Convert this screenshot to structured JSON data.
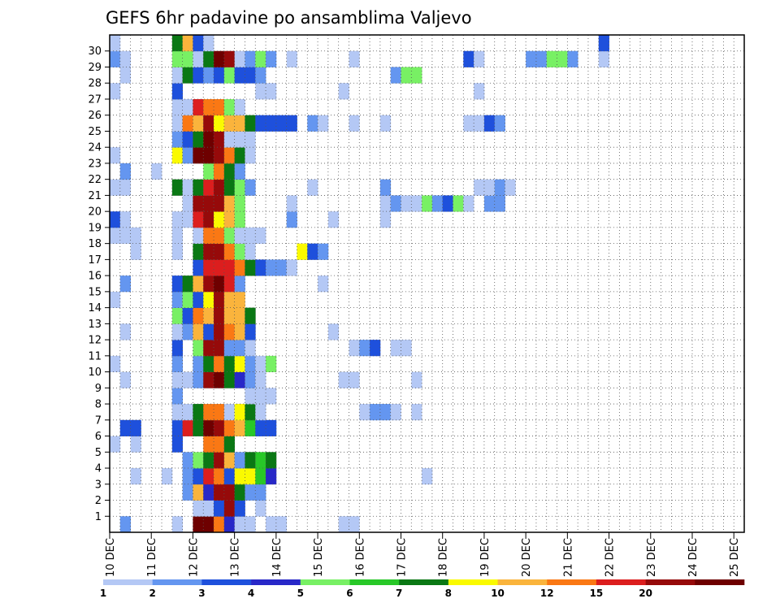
{
  "chart_data": {
    "type": "heatmap",
    "title": "GEFS 6hr padavine po ansamblima Valjevo",
    "xlabel": "",
    "ylabel": "",
    "x_tick_labels": [
      "10 DEC",
      "11 DEC",
      "12 DEC",
      "13 DEC",
      "14 DEC",
      "15 DEC",
      "16 DEC",
      "17 DEC",
      "18 DEC",
      "19 DEC",
      "20 DEC",
      "21 DEC",
      "22 DEC",
      "23 DEC",
      "24 DEC",
      "25 DEC"
    ],
    "y_tick_labels": [
      "1",
      "2",
      "3",
      "4",
      "5",
      "6",
      "7",
      "8",
      "9",
      "10",
      "11",
      "12",
      "13",
      "14",
      "15",
      "16",
      "17",
      "18",
      "19",
      "20",
      "21",
      "22",
      "23",
      "24",
      "25",
      "26",
      "27",
      "28",
      "29",
      "30"
    ],
    "grid": true,
    "x_steps": 61,
    "y_rows": 31,
    "colorbar": {
      "labels": [
        "1",
        "2",
        "3",
        "4",
        "5",
        "6",
        "7",
        "8",
        "10",
        "12",
        "15",
        "20"
      ],
      "colors": [
        "#b4c8f5",
        "#6496f0",
        "#1e50dc",
        "#2828c8",
        "#78f064",
        "#28c828",
        "#0a7814",
        "#fafa00",
        "#fab43c",
        "#fa7814",
        "#dc1e1e",
        "#960a0a",
        "#6e0000"
      ]
    },
    "levels_note": "cells store colour class index 0..12 (0 = 1-2 mm ... 12 = >20 mm)",
    "cells": [
      [
        0,
        1,
        1
      ],
      [
        0,
        6,
        0
      ],
      [
        0,
        8,
        12
      ],
      [
        0,
        9,
        12
      ],
      [
        0,
        10,
        9
      ],
      [
        0,
        11,
        3
      ],
      [
        0,
        12,
        0
      ],
      [
        0,
        13,
        0
      ],
      [
        0,
        15,
        0
      ],
      [
        0,
        16,
        0
      ],
      [
        0,
        22,
        0
      ],
      [
        0,
        23,
        0
      ],
      [
        1,
        8,
        0
      ],
      [
        1,
        9,
        0
      ],
      [
        1,
        10,
        2
      ],
      [
        1,
        11,
        11
      ],
      [
        1,
        12,
        2
      ],
      [
        1,
        14,
        0
      ],
      [
        2,
        7,
        1
      ],
      [
        2,
        8,
        8
      ],
      [
        2,
        9,
        3
      ],
      [
        2,
        10,
        11
      ],
      [
        2,
        11,
        11
      ],
      [
        2,
        12,
        6
      ],
      [
        2,
        13,
        1
      ],
      [
        2,
        14,
        1
      ],
      [
        3,
        2,
        0
      ],
      [
        3,
        5,
        0
      ],
      [
        3,
        7,
        1
      ],
      [
        3,
        8,
        2
      ],
      [
        3,
        9,
        10
      ],
      [
        3,
        10,
        9
      ],
      [
        3,
        11,
        2
      ],
      [
        3,
        12,
        7
      ],
      [
        3,
        13,
        7
      ],
      [
        3,
        14,
        5
      ],
      [
        3,
        15,
        3
      ],
      [
        3,
        30,
        0
      ],
      [
        4,
        7,
        1
      ],
      [
        4,
        8,
        4
      ],
      [
        4,
        9,
        6
      ],
      [
        4,
        10,
        11
      ],
      [
        4,
        11,
        8
      ],
      [
        4,
        12,
        1
      ],
      [
        4,
        13,
        6
      ],
      [
        4,
        14,
        5
      ],
      [
        4,
        15,
        6
      ],
      [
        5,
        0,
        0
      ],
      [
        5,
        2,
        0
      ],
      [
        5,
        6,
        2
      ],
      [
        5,
        9,
        9
      ],
      [
        5,
        10,
        9
      ],
      [
        5,
        11,
        6
      ],
      [
        6,
        1,
        2
      ],
      [
        6,
        2,
        2
      ],
      [
        6,
        6,
        2
      ],
      [
        6,
        7,
        10
      ],
      [
        6,
        8,
        6
      ],
      [
        6,
        9,
        12
      ],
      [
        6,
        10,
        11
      ],
      [
        6,
        11,
        9
      ],
      [
        6,
        12,
        8
      ],
      [
        6,
        13,
        5
      ],
      [
        6,
        14,
        2
      ],
      [
        6,
        15,
        2
      ],
      [
        7,
        6,
        0
      ],
      [
        7,
        7,
        0
      ],
      [
        7,
        8,
        6
      ],
      [
        7,
        9,
        9
      ],
      [
        7,
        10,
        9
      ],
      [
        7,
        11,
        0
      ],
      [
        7,
        12,
        7
      ],
      [
        7,
        13,
        6
      ],
      [
        7,
        14,
        0
      ],
      [
        7,
        24,
        0
      ],
      [
        7,
        25,
        1
      ],
      [
        7,
        26,
        1
      ],
      [
        7,
        27,
        0
      ],
      [
        7,
        29,
        0
      ],
      [
        8,
        6,
        1
      ],
      [
        8,
        13,
        0
      ],
      [
        8,
        14,
        0
      ],
      [
        8,
        15,
        0
      ],
      [
        9,
        1,
        0
      ],
      [
        9,
        6,
        0
      ],
      [
        9,
        7,
        0
      ],
      [
        9,
        8,
        1
      ],
      [
        9,
        9,
        11
      ],
      [
        9,
        10,
        12
      ],
      [
        9,
        11,
        6
      ],
      [
        9,
        12,
        3
      ],
      [
        9,
        13,
        1
      ],
      [
        9,
        14,
        0
      ],
      [
        9,
        22,
        0
      ],
      [
        9,
        23,
        0
      ],
      [
        9,
        29,
        0
      ],
      [
        10,
        0,
        0
      ],
      [
        10,
        6,
        1
      ],
      [
        10,
        8,
        1
      ],
      [
        10,
        9,
        6
      ],
      [
        10,
        10,
        9
      ],
      [
        10,
        11,
        6
      ],
      [
        10,
        12,
        7
      ],
      [
        10,
        13,
        1
      ],
      [
        10,
        14,
        0
      ],
      [
        10,
        15,
        4
      ],
      [
        11,
        6,
        2
      ],
      [
        11,
        8,
        4
      ],
      [
        11,
        9,
        11
      ],
      [
        11,
        10,
        11
      ],
      [
        11,
        11,
        1
      ],
      [
        11,
        12,
        1
      ],
      [
        11,
        13,
        0
      ],
      [
        11,
        23,
        0
      ],
      [
        11,
        24,
        1
      ],
      [
        11,
        25,
        2
      ],
      [
        11,
        27,
        0
      ],
      [
        11,
        28,
        0
      ],
      [
        12,
        1,
        0
      ],
      [
        12,
        6,
        0
      ],
      [
        12,
        7,
        1
      ],
      [
        12,
        8,
        8
      ],
      [
        12,
        9,
        2
      ],
      [
        12,
        10,
        11
      ],
      [
        12,
        11,
        9
      ],
      [
        12,
        12,
        8
      ],
      [
        12,
        13,
        2
      ],
      [
        12,
        21,
        0
      ],
      [
        13,
        6,
        4
      ],
      [
        13,
        7,
        2
      ],
      [
        13,
        8,
        9
      ],
      [
        13,
        9,
        8
      ],
      [
        13,
        10,
        11
      ],
      [
        13,
        11,
        8
      ],
      [
        13,
        12,
        8
      ],
      [
        13,
        13,
        6
      ],
      [
        14,
        0,
        0
      ],
      [
        14,
        6,
        1
      ],
      [
        14,
        7,
        4
      ],
      [
        14,
        8,
        2
      ],
      [
        14,
        9,
        7
      ],
      [
        14,
        10,
        11
      ],
      [
        14,
        11,
        8
      ],
      [
        14,
        12,
        8
      ],
      [
        15,
        1,
        1
      ],
      [
        15,
        6,
        2
      ],
      [
        15,
        7,
        6
      ],
      [
        15,
        8,
        8
      ],
      [
        15,
        9,
        11
      ],
      [
        15,
        10,
        12
      ],
      [
        15,
        11,
        10
      ],
      [
        15,
        12,
        1
      ],
      [
        15,
        20,
        0
      ],
      [
        16,
        8,
        2
      ],
      [
        16,
        9,
        10
      ],
      [
        16,
        10,
        10
      ],
      [
        16,
        11,
        10
      ],
      [
        16,
        12,
        9
      ],
      [
        16,
        13,
        6
      ],
      [
        16,
        14,
        2
      ],
      [
        16,
        15,
        1
      ],
      [
        16,
        16,
        1
      ],
      [
        16,
        17,
        0
      ],
      [
        17,
        2,
        0
      ],
      [
        17,
        6,
        0
      ],
      [
        17,
        8,
        6
      ],
      [
        17,
        9,
        11
      ],
      [
        17,
        10,
        11
      ],
      [
        17,
        11,
        9
      ],
      [
        17,
        12,
        4
      ],
      [
        17,
        13,
        0
      ],
      [
        17,
        18,
        7
      ],
      [
        17,
        19,
        2
      ],
      [
        17,
        20,
        1
      ],
      [
        18,
        0,
        0
      ],
      [
        18,
        1,
        0
      ],
      [
        18,
        2,
        0
      ],
      [
        18,
        6,
        0
      ],
      [
        18,
        8,
        0
      ],
      [
        18,
        9,
        9
      ],
      [
        18,
        10,
        9
      ],
      [
        18,
        11,
        4
      ],
      [
        18,
        12,
        0
      ],
      [
        18,
        13,
        0
      ],
      [
        18,
        14,
        0
      ],
      [
        19,
        0,
        2
      ],
      [
        19,
        1,
        0
      ],
      [
        19,
        6,
        0
      ],
      [
        19,
        7,
        0
      ],
      [
        19,
        8,
        10
      ],
      [
        19,
        9,
        11
      ],
      [
        19,
        10,
        7
      ],
      [
        19,
        11,
        8
      ],
      [
        19,
        12,
        4
      ],
      [
        19,
        17,
        1
      ],
      [
        19,
        21,
        0
      ],
      [
        19,
        26,
        0
      ],
      [
        20,
        7,
        0
      ],
      [
        20,
        8,
        11
      ],
      [
        20,
        9,
        11
      ],
      [
        20,
        10,
        11
      ],
      [
        20,
        11,
        8
      ],
      [
        20,
        12,
        4
      ],
      [
        20,
        17,
        0
      ],
      [
        20,
        26,
        0
      ],
      [
        20,
        27,
        1
      ],
      [
        20,
        28,
        0
      ],
      [
        20,
        29,
        0
      ],
      [
        20,
        30,
        4
      ],
      [
        20,
        31,
        1
      ],
      [
        20,
        32,
        2
      ],
      [
        20,
        33,
        4
      ],
      [
        20,
        34,
        0
      ],
      [
        20,
        36,
        1
      ],
      [
        20,
        37,
        1
      ],
      [
        21,
        0,
        0
      ],
      [
        21,
        1,
        0
      ],
      [
        21,
        6,
        6
      ],
      [
        21,
        7,
        0
      ],
      [
        21,
        8,
        6
      ],
      [
        21,
        9,
        10
      ],
      [
        21,
        10,
        11
      ],
      [
        21,
        11,
        6
      ],
      [
        21,
        12,
        4
      ],
      [
        21,
        13,
        1
      ],
      [
        21,
        19,
        0
      ],
      [
        21,
        26,
        1
      ],
      [
        21,
        35,
        0
      ],
      [
        21,
        36,
        0
      ],
      [
        21,
        37,
        1
      ],
      [
        21,
        38,
        0
      ],
      [
        22,
        1,
        1
      ],
      [
        22,
        4,
        0
      ],
      [
        22,
        9,
        4
      ],
      [
        22,
        10,
        9
      ],
      [
        22,
        11,
        6
      ],
      [
        22,
        12,
        1
      ],
      [
        23,
        0,
        0
      ],
      [
        23,
        6,
        7
      ],
      [
        23,
        7,
        1
      ],
      [
        23,
        8,
        12
      ],
      [
        23,
        9,
        12
      ],
      [
        23,
        10,
        11
      ],
      [
        23,
        11,
        9
      ],
      [
        23,
        12,
        6
      ],
      [
        23,
        13,
        0
      ],
      [
        24,
        6,
        1
      ],
      [
        24,
        7,
        2
      ],
      [
        24,
        8,
        6
      ],
      [
        24,
        9,
        12
      ],
      [
        24,
        10,
        11
      ],
      [
        24,
        11,
        0
      ],
      [
        24,
        12,
        0
      ],
      [
        24,
        13,
        0
      ],
      [
        25,
        6,
        0
      ],
      [
        25,
        7,
        9
      ],
      [
        25,
        8,
        8
      ],
      [
        25,
        9,
        11
      ],
      [
        25,
        10,
        7
      ],
      [
        25,
        11,
        8
      ],
      [
        25,
        12,
        8
      ],
      [
        25,
        13,
        6
      ],
      [
        25,
        14,
        2
      ],
      [
        25,
        15,
        2
      ],
      [
        25,
        16,
        2
      ],
      [
        25,
        17,
        2
      ],
      [
        25,
        19,
        1
      ],
      [
        25,
        20,
        0
      ],
      [
        25,
        23,
        0
      ],
      [
        25,
        26,
        0
      ],
      [
        25,
        34,
        0
      ],
      [
        25,
        35,
        0
      ],
      [
        25,
        36,
        2
      ],
      [
        25,
        37,
        1
      ],
      [
        26,
        6,
        0
      ],
      [
        26,
        7,
        0
      ],
      [
        26,
        8,
        10
      ],
      [
        26,
        9,
        9
      ],
      [
        26,
        10,
        9
      ],
      [
        26,
        11,
        4
      ],
      [
        26,
        12,
        0
      ],
      [
        27,
        0,
        0
      ],
      [
        27,
        6,
        2
      ],
      [
        27,
        14,
        0
      ],
      [
        27,
        15,
        0
      ],
      [
        27,
        22,
        0
      ],
      [
        27,
        35,
        0
      ],
      [
        28,
        1,
        0
      ],
      [
        28,
        6,
        0
      ],
      [
        28,
        7,
        6
      ],
      [
        28,
        8,
        2
      ],
      [
        28,
        9,
        1
      ],
      [
        28,
        10,
        2
      ],
      [
        28,
        11,
        4
      ],
      [
        28,
        12,
        2
      ],
      [
        28,
        13,
        2
      ],
      [
        28,
        14,
        1
      ],
      [
        28,
        27,
        1
      ],
      [
        28,
        28,
        4
      ],
      [
        28,
        29,
        4
      ],
      [
        29,
        0,
        1
      ],
      [
        29,
        1,
        0
      ],
      [
        29,
        6,
        4
      ],
      [
        29,
        7,
        4
      ],
      [
        29,
        8,
        0
      ],
      [
        29,
        9,
        6
      ],
      [
        29,
        10,
        12
      ],
      [
        29,
        11,
        11
      ],
      [
        29,
        12,
        0
      ],
      [
        29,
        13,
        1
      ],
      [
        29,
        14,
        4
      ],
      [
        29,
        15,
        1
      ],
      [
        29,
        17,
        0
      ],
      [
        29,
        23,
        0
      ],
      [
        29,
        34,
        2
      ],
      [
        29,
        35,
        0
      ],
      [
        29,
        40,
        1
      ],
      [
        29,
        41,
        1
      ],
      [
        29,
        42,
        4
      ],
      [
        29,
        43,
        4
      ],
      [
        29,
        44,
        1
      ],
      [
        29,
        47,
        0
      ],
      [
        30,
        0,
        0
      ],
      [
        30,
        6,
        6
      ],
      [
        30,
        7,
        8
      ],
      [
        30,
        8,
        2
      ],
      [
        30,
        9,
        0
      ],
      [
        30,
        47,
        2
      ]
    ]
  }
}
